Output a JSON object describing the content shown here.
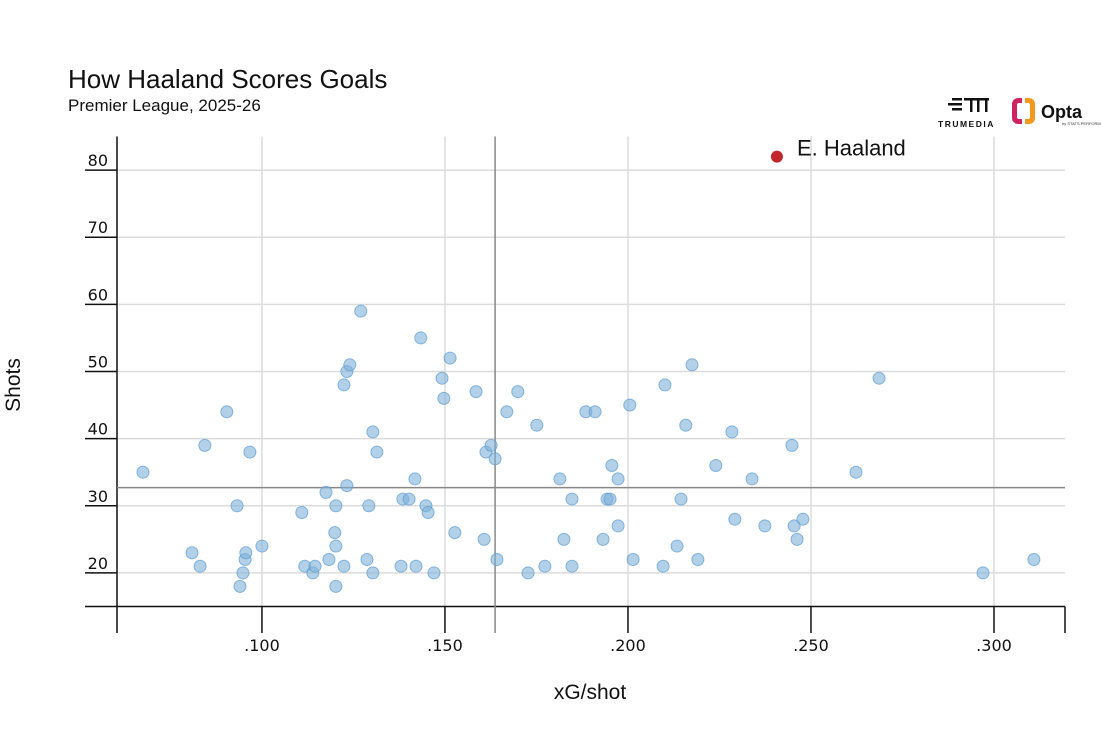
{
  "chart_data": {
    "type": "scatter",
    "title": "How Haaland Scores Goals",
    "subtitle": "Premier League, 2025-26",
    "xlabel": "xG/shot",
    "ylabel": "Shots",
    "xlim": [
      0.0604,
      0.3194
    ],
    "ylim": [
      15,
      85
    ],
    "x_ticks": [
      0.1,
      0.15,
      0.2,
      0.25,
      0.3
    ],
    "x_tick_labels": [
      ".100",
      ".150",
      ".200",
      ".250",
      ".300"
    ],
    "y_ticks": [
      20,
      30,
      40,
      50,
      60,
      70,
      80
    ],
    "y_tick_labels": [
      "20",
      "30",
      "40",
      "50",
      "60",
      "70",
      "80"
    ],
    "grid": true,
    "mean_lines": {
      "x": 0.1637,
      "y": 32.7
    },
    "colors": {
      "points": "#7fb0d8",
      "highlight": "#c0282d",
      "mean_line": "#888888"
    },
    "highlight": {
      "name": "E. Haaland",
      "x": 0.2407,
      "y": 82
    },
    "points": [
      [
        0.0675,
        35
      ],
      [
        0.0809,
        23
      ],
      [
        0.0831,
        21
      ],
      [
        0.0844,
        39
      ],
      [
        0.0904,
        44
      ],
      [
        0.0932,
        30
      ],
      [
        0.094,
        18
      ],
      [
        0.0948,
        20
      ],
      [
        0.0954,
        22
      ],
      [
        0.0956,
        23
      ],
      [
        0.0967,
        38
      ],
      [
        0.1,
        24
      ],
      [
        0.1109,
        29
      ],
      [
        0.1117,
        21
      ],
      [
        0.1139,
        20
      ],
      [
        0.1145,
        21
      ],
      [
        0.1175,
        32
      ],
      [
        0.1183,
        22
      ],
      [
        0.1199,
        26
      ],
      [
        0.1202,
        24
      ],
      [
        0.1202,
        30
      ],
      [
        0.1202,
        18
      ],
      [
        0.1224,
        21
      ],
      [
        0.1232,
        33
      ],
      [
        0.1224,
        48
      ],
      [
        0.1232,
        50
      ],
      [
        0.124,
        51
      ],
      [
        0.127,
        59
      ],
      [
        0.1287,
        22
      ],
      [
        0.1292,
        30
      ],
      [
        0.1303,
        20
      ],
      [
        0.1303,
        41
      ],
      [
        0.1314,
        38
      ],
      [
        0.138,
        21
      ],
      [
        0.1385,
        31
      ],
      [
        0.1402,
        31
      ],
      [
        0.1418,
        34
      ],
      [
        0.1421,
        21
      ],
      [
        0.1434,
        55
      ],
      [
        0.1448,
        30
      ],
      [
        0.1454,
        29
      ],
      [
        0.147,
        20
      ],
      [
        0.1492,
        49
      ],
      [
        0.1497,
        46
      ],
      [
        0.1514,
        52
      ],
      [
        0.1527,
        26
      ],
      [
        0.1585,
        47
      ],
      [
        0.1607,
        25
      ],
      [
        0.1612,
        38
      ],
      [
        0.1626,
        39
      ],
      [
        0.1637,
        37
      ],
      [
        0.1642,
        22
      ],
      [
        0.1669,
        44
      ],
      [
        0.1699,
        47
      ],
      [
        0.1727,
        20
      ],
      [
        0.1751,
        42
      ],
      [
        0.1773,
        21
      ],
      [
        0.1814,
        34
      ],
      [
        0.1825,
        25
      ],
      [
        0.1847,
        21
      ],
      [
        0.1847,
        31
      ],
      [
        0.1885,
        44
      ],
      [
        0.191,
        44
      ],
      [
        0.1932,
        25
      ],
      [
        0.1943,
        31
      ],
      [
        0.1951,
        31
      ],
      [
        0.1956,
        36
      ],
      [
        0.1973,
        27
      ],
      [
        0.1973,
        34
      ],
      [
        0.2005,
        45
      ],
      [
        0.2014,
        22
      ],
      [
        0.2096,
        21
      ],
      [
        0.2101,
        48
      ],
      [
        0.2134,
        24
      ],
      [
        0.2145,
        31
      ],
      [
        0.2158,
        42
      ],
      [
        0.2175,
        51
      ],
      [
        0.2191,
        22
      ],
      [
        0.224,
        36
      ],
      [
        0.2284,
        41
      ],
      [
        0.2292,
        28
      ],
      [
        0.2339,
        34
      ],
      [
        0.2374,
        27
      ],
      [
        0.2448,
        39
      ],
      [
        0.2454,
        27
      ],
      [
        0.2462,
        25
      ],
      [
        0.2478,
        28
      ],
      [
        0.2623,
        35
      ],
      [
        0.2686,
        49
      ],
      [
        0.297,
        20
      ],
      [
        0.3109,
        22
      ]
    ]
  },
  "logos": {
    "trumedia": "TRUMEDIA",
    "opta": "Opta",
    "opta_sub": "by STATS PERFORM"
  }
}
